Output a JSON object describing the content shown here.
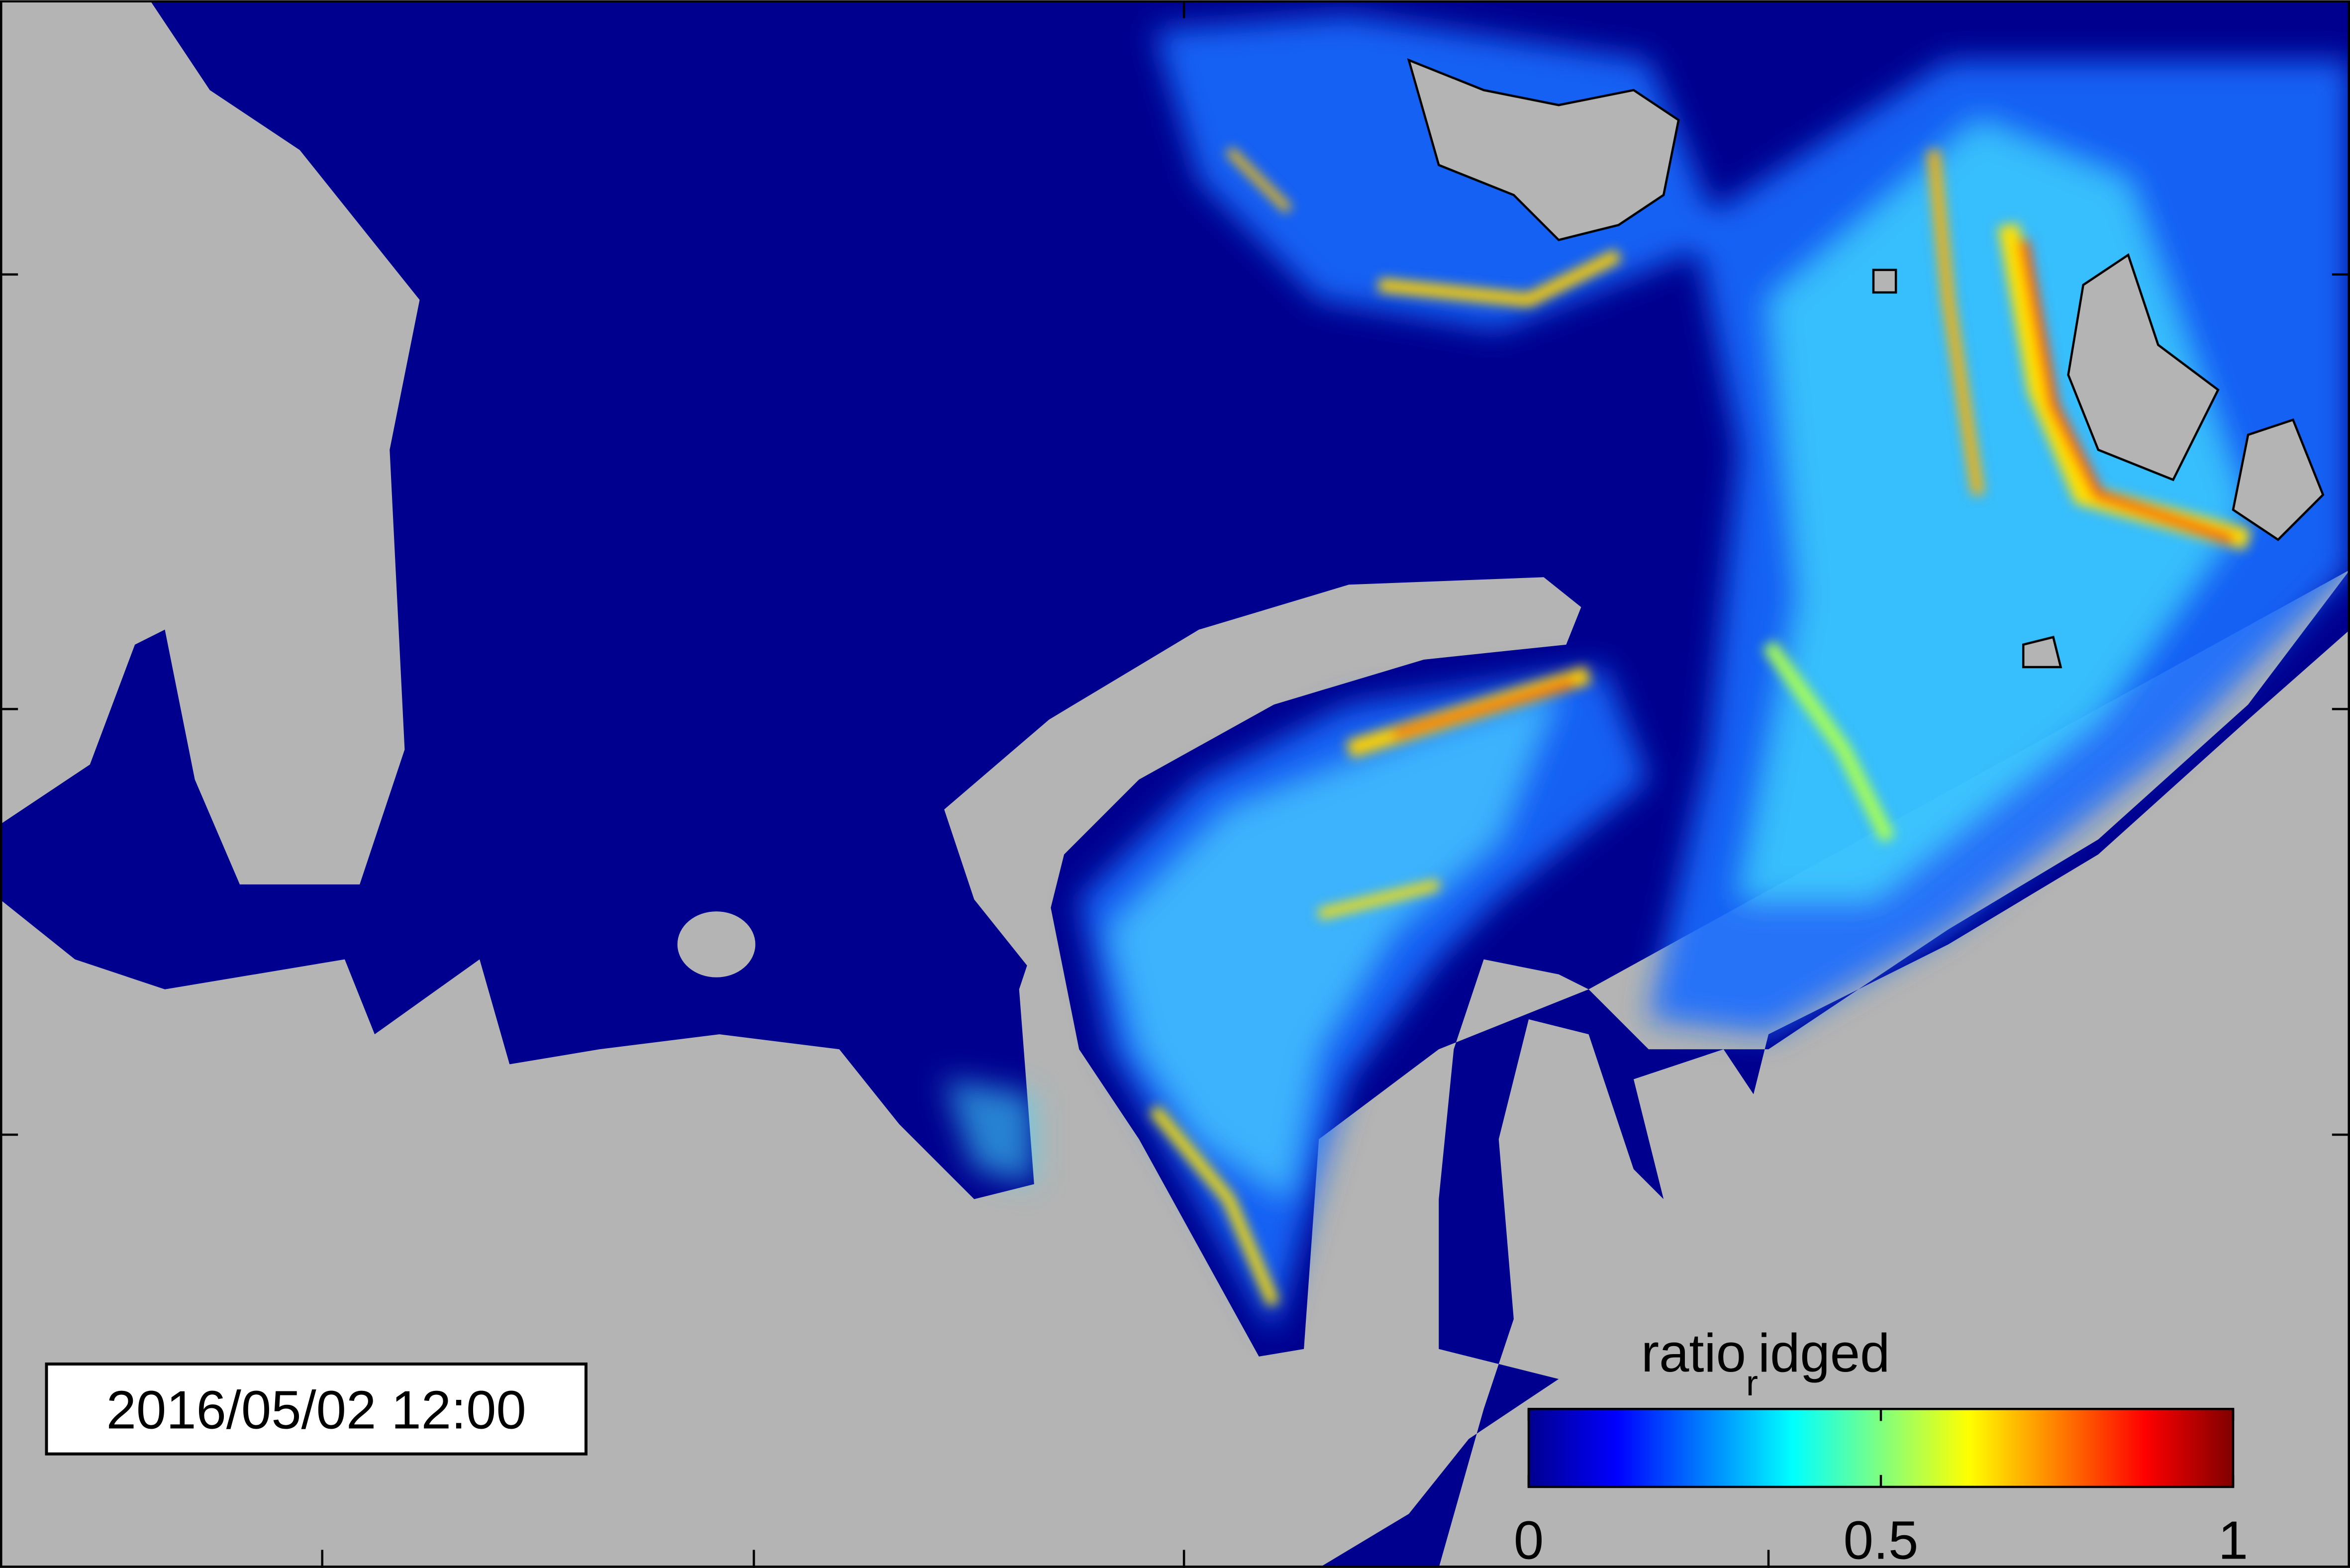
{
  "timestamp": "2016/05/02 12:00",
  "colorbar": {
    "label": {
      "main": "ratio",
      "subscript": "r",
      "rest": "idged"
    },
    "lim": [
      0,
      1
    ],
    "ticks": [
      0,
      0.5,
      1
    ]
  }
}
